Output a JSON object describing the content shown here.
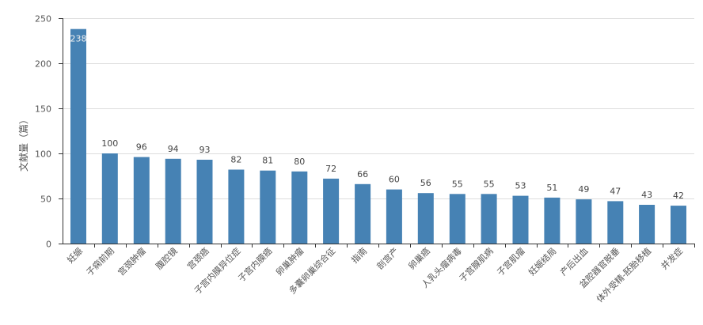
{
  "chart_data": {
    "type": "bar",
    "title": "",
    "xlabel": "",
    "ylabel": "文献量（篇）",
    "ylim": [
      0,
      250
    ],
    "yticks": [
      0,
      50,
      100,
      150,
      200,
      250
    ],
    "grid": true,
    "legend": "none",
    "colors": {
      "bar": "#4682b4",
      "grid": "#dddddd",
      "axis": "#333333"
    },
    "categories": [
      "妊娠",
      "子痫前期",
      "宫颈肿瘤",
      "腹腔镜",
      "宫颈癌",
      "子宫内膜异位症",
      "子宫内膜癌",
      "卵巢肿瘤",
      "多囊卵巢综合征",
      "指南",
      "剖宫产",
      "卵巢癌",
      "人乳头瘤病毒",
      "子宫腺肌病",
      "子宫肌瘤",
      "妊娠结局",
      "产后出血",
      "盆腔器官脱垂",
      "体外受精-胚胎移植",
      "并发症"
    ],
    "values": [
      238,
      100,
      96,
      94,
      93,
      82,
      81,
      80,
      72,
      66,
      60,
      56,
      55,
      55,
      53,
      51,
      49,
      47,
      43,
      42
    ]
  }
}
